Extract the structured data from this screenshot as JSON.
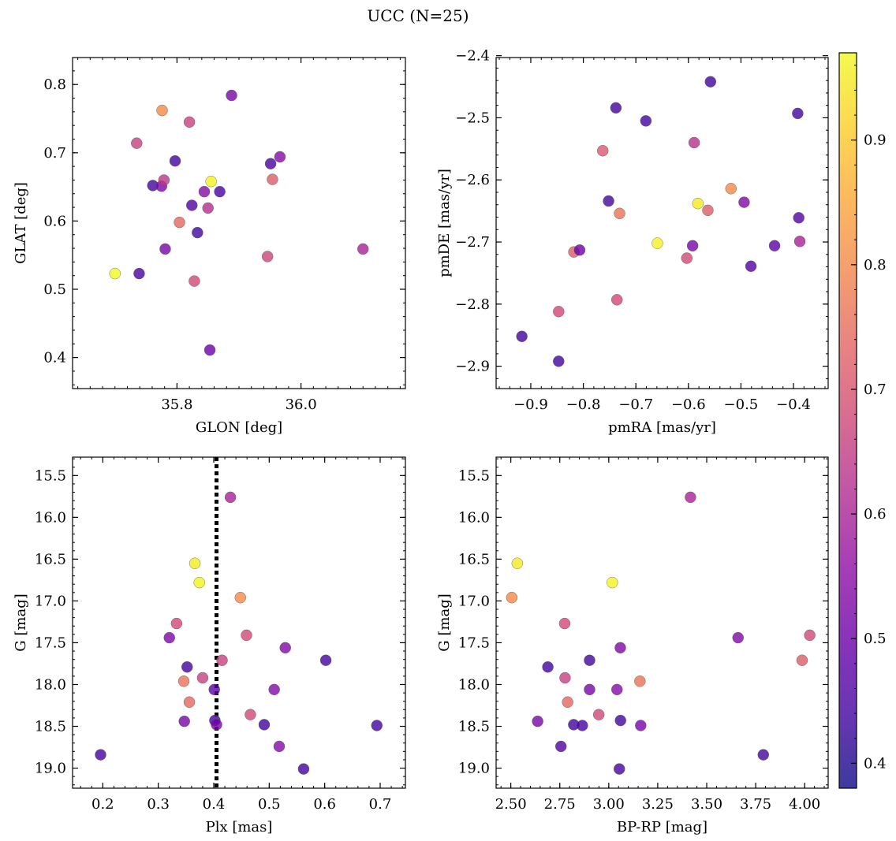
{
  "figure": {
    "title": "UCC (N=25)"
  },
  "colormap": [
    "#0d0887",
    "#41049d",
    "#6a00a8",
    "#8f0da4",
    "#b12a90",
    "#cc4778",
    "#e16462",
    "#f2844b",
    "#fca636",
    "#fcce25",
    "#f0f921"
  ],
  "colorbar": {
    "vmin": 0.38,
    "vmax": 0.97,
    "ticks": [
      "0.4",
      "0.5",
      "0.6",
      "0.7",
      "0.8",
      "0.9"
    ],
    "alpha": 0.8
  },
  "chart_data": [
    {
      "type": "scatter",
      "xlabel": "GLON [deg]",
      "ylabel": "GLAT [deg]",
      "xlim": [
        35.6316,
        36.1684
      ],
      "ylim": [
        0.3545,
        0.8395
      ],
      "xticks": [
        "35.8",
        "36.0"
      ],
      "yticks": [
        "0.4",
        "0.5",
        "0.6",
        "0.7",
        "0.8"
      ],
      "x_minor_step": 0.02,
      "y_minor_step": 0.02,
      "points": [
        {
          "x": 35.7,
          "y": 0.523,
          "c": 0.97
        },
        {
          "x": 35.739,
          "y": 0.523,
          "c": 0.45
        },
        {
          "x": 35.761,
          "y": 0.652,
          "c": 0.44
        },
        {
          "x": 35.735,
          "y": 0.714,
          "c": 0.66
        },
        {
          "x": 35.775,
          "y": 0.651,
          "c": 0.52
        },
        {
          "x": 35.776,
          "y": 0.762,
          "c": 0.8
        },
        {
          "x": 35.779,
          "y": 0.66,
          "c": 0.64
        },
        {
          "x": 35.781,
          "y": 0.559,
          "c": 0.52
        },
        {
          "x": 35.797,
          "y": 0.688,
          "c": 0.44
        },
        {
          "x": 35.804,
          "y": 0.598,
          "c": 0.74
        },
        {
          "x": 35.82,
          "y": 0.745,
          "c": 0.66
        },
        {
          "x": 35.824,
          "y": 0.623,
          "c": 0.46
        },
        {
          "x": 35.828,
          "y": 0.512,
          "c": 0.68
        },
        {
          "x": 35.833,
          "y": 0.583,
          "c": 0.44
        },
        {
          "x": 35.844,
          "y": 0.643,
          "c": 0.54
        },
        {
          "x": 35.85,
          "y": 0.619,
          "c": 0.62
        },
        {
          "x": 35.853,
          "y": 0.411,
          "c": 0.5
        },
        {
          "x": 35.855,
          "y": 0.658,
          "c": 0.96
        },
        {
          "x": 35.869,
          "y": 0.643,
          "c": 0.45
        },
        {
          "x": 35.888,
          "y": 0.784,
          "c": 0.52
        },
        {
          "x": 35.946,
          "y": 0.548,
          "c": 0.67
        },
        {
          "x": 35.951,
          "y": 0.684,
          "c": 0.45
        },
        {
          "x": 35.954,
          "y": 0.661,
          "c": 0.72
        },
        {
          "x": 35.966,
          "y": 0.694,
          "c": 0.54
        },
        {
          "x": 36.1,
          "y": 0.559,
          "c": 0.6
        }
      ]
    },
    {
      "type": "scatter",
      "xlabel": "pmRA [mas/yr]",
      "ylabel": "pmDE [mas/yr]",
      "xlim": [
        -0.966,
        -0.334
      ],
      "ylim": [
        -2.936,
        -2.403
      ],
      "xticks": [
        "−0.9",
        "−0.8",
        "−0.7",
        "−0.6",
        "−0.5",
        "−0.4"
      ],
      "yticks": [
        "−2.9",
        "−2.8",
        "−2.7",
        "−2.6",
        "−2.5",
        "−2.4"
      ],
      "x_minor_step": 0.02,
      "y_minor_step": 0.02,
      "points": [
        {
          "x": -0.917,
          "y": -2.852,
          "c": 0.44
        },
        {
          "x": -0.847,
          "y": -2.892,
          "c": 0.44
        },
        {
          "x": -0.847,
          "y": -2.812,
          "c": 0.68
        },
        {
          "x": -0.818,
          "y": -2.716,
          "c": 0.72
        },
        {
          "x": -0.807,
          "y": -2.713,
          "c": 0.5
        },
        {
          "x": -0.763,
          "y": -2.553,
          "c": 0.71
        },
        {
          "x": -0.752,
          "y": -2.634,
          "c": 0.44
        },
        {
          "x": -0.738,
          "y": -2.484,
          "c": 0.44
        },
        {
          "x": -0.736,
          "y": -2.793,
          "c": 0.68
        },
        {
          "x": -0.731,
          "y": -2.654,
          "c": 0.76
        },
        {
          "x": -0.681,
          "y": -2.505,
          "c": 0.44
        },
        {
          "x": -0.659,
          "y": -2.702,
          "c": 0.96
        },
        {
          "x": -0.603,
          "y": -2.726,
          "c": 0.68
        },
        {
          "x": -0.592,
          "y": -2.706,
          "c": 0.52
        },
        {
          "x": -0.589,
          "y": -2.54,
          "c": 0.63
        },
        {
          "x": -0.582,
          "y": -2.638,
          "c": 0.95
        },
        {
          "x": -0.563,
          "y": -2.649,
          "c": 0.72
        },
        {
          "x": -0.558,
          "y": -2.442,
          "c": 0.44
        },
        {
          "x": -0.519,
          "y": -2.614,
          "c": 0.8
        },
        {
          "x": -0.494,
          "y": -2.636,
          "c": 0.53
        },
        {
          "x": -0.481,
          "y": -2.739,
          "c": 0.46
        },
        {
          "x": -0.436,
          "y": -2.706,
          "c": 0.48
        },
        {
          "x": -0.392,
          "y": -2.493,
          "c": 0.44
        },
        {
          "x": -0.39,
          "y": -2.661,
          "c": 0.46
        },
        {
          "x": -0.388,
          "y": -2.699,
          "c": 0.6
        }
      ]
    },
    {
      "type": "scatter",
      "xlabel": "Plx [mas]",
      "ylabel": "G [mag]",
      "xlim": [
        0.1455,
        0.7455
      ],
      "ylim": [
        19.24,
        15.28
      ],
      "yinvert": true,
      "xticks": [
        "0.2",
        "0.3",
        "0.4",
        "0.5",
        "0.6",
        "0.7"
      ],
      "yticks": [
        "15.5",
        "16.0",
        "16.5",
        "17.0",
        "17.5",
        "18.0",
        "18.5",
        "19.0"
      ],
      "x_minor_step": 0.02,
      "y_minor_step": 0.1,
      "vline": 0.405,
      "points": [
        {
          "x": 0.196,
          "y": 18.84,
          "c": 0.44
        },
        {
          "x": 0.32,
          "y": 17.44,
          "c": 0.53
        },
        {
          "x": 0.333,
          "y": 17.27,
          "c": 0.68
        },
        {
          "x": 0.346,
          "y": 17.96,
          "c": 0.76
        },
        {
          "x": 0.347,
          "y": 18.44,
          "c": 0.52
        },
        {
          "x": 0.352,
          "y": 17.79,
          "c": 0.44
        },
        {
          "x": 0.356,
          "y": 18.21,
          "c": 0.74
        },
        {
          "x": 0.366,
          "y": 16.55,
          "c": 0.95
        },
        {
          "x": 0.374,
          "y": 16.78,
          "c": 0.96
        },
        {
          "x": 0.38,
          "y": 17.92,
          "c": 0.66
        },
        {
          "x": 0.401,
          "y": 18.06,
          "c": 0.48
        },
        {
          "x": 0.402,
          "y": 18.43,
          "c": 0.44
        },
        {
          "x": 0.405,
          "y": 18.48,
          "c": 0.52
        },
        {
          "x": 0.415,
          "y": 17.71,
          "c": 0.66
        },
        {
          "x": 0.43,
          "y": 15.76,
          "c": 0.6
        },
        {
          "x": 0.448,
          "y": 16.96,
          "c": 0.8
        },
        {
          "x": 0.459,
          "y": 17.41,
          "c": 0.68
        },
        {
          "x": 0.466,
          "y": 18.36,
          "c": 0.68
        },
        {
          "x": 0.491,
          "y": 18.48,
          "c": 0.44
        },
        {
          "x": 0.509,
          "y": 18.06,
          "c": 0.54
        },
        {
          "x": 0.518,
          "y": 18.74,
          "c": 0.54
        },
        {
          "x": 0.529,
          "y": 17.56,
          "c": 0.53
        },
        {
          "x": 0.562,
          "y": 19.01,
          "c": 0.44
        },
        {
          "x": 0.602,
          "y": 17.71,
          "c": 0.44
        },
        {
          "x": 0.694,
          "y": 18.49,
          "c": 0.44
        }
      ]
    },
    {
      "type": "scatter",
      "xlabel": "BP-RP [mag]",
      "ylabel": "G [mag]",
      "xlim": [
        2.425,
        4.12
      ],
      "ylim": [
        19.24,
        15.28
      ],
      "yinvert": true,
      "xticks": [
        "2.50",
        "2.75",
        "3.00",
        "3.25",
        "3.50",
        "3.75",
        "4.00"
      ],
      "yticks": [
        "15.5",
        "16.0",
        "16.5",
        "17.0",
        "17.5",
        "18.0",
        "18.5",
        "19.0"
      ],
      "x_minor_step": 0.05,
      "y_minor_step": 0.1,
      "points": [
        {
          "x": 2.505,
          "y": 16.96,
          "c": 0.8
        },
        {
          "x": 2.533,
          "y": 16.55,
          "c": 0.95
        },
        {
          "x": 2.637,
          "y": 18.44,
          "c": 0.52
        },
        {
          "x": 2.689,
          "y": 17.79,
          "c": 0.44
        },
        {
          "x": 2.756,
          "y": 18.74,
          "c": 0.46
        },
        {
          "x": 2.775,
          "y": 17.27,
          "c": 0.68
        },
        {
          "x": 2.777,
          "y": 17.92,
          "c": 0.66
        },
        {
          "x": 2.79,
          "y": 18.21,
          "c": 0.74
        },
        {
          "x": 2.821,
          "y": 18.48,
          "c": 0.44
        },
        {
          "x": 2.865,
          "y": 18.49,
          "c": 0.44
        },
        {
          "x": 2.902,
          "y": 17.71,
          "c": 0.44
        },
        {
          "x": 2.902,
          "y": 18.06,
          "c": 0.52
        },
        {
          "x": 2.949,
          "y": 18.36,
          "c": 0.68
        },
        {
          "x": 3.018,
          "y": 16.78,
          "c": 0.96
        },
        {
          "x": 3.042,
          "y": 18.06,
          "c": 0.54
        },
        {
          "x": 3.054,
          "y": 19.01,
          "c": 0.44
        },
        {
          "x": 3.059,
          "y": 17.56,
          "c": 0.53
        },
        {
          "x": 3.06,
          "y": 18.43,
          "c": 0.44
        },
        {
          "x": 3.159,
          "y": 17.96,
          "c": 0.76
        },
        {
          "x": 3.163,
          "y": 18.49,
          "c": 0.52
        },
        {
          "x": 3.417,
          "y": 15.76,
          "c": 0.6
        },
        {
          "x": 3.66,
          "y": 17.44,
          "c": 0.53
        },
        {
          "x": 3.789,
          "y": 18.84,
          "c": 0.44
        },
        {
          "x": 3.987,
          "y": 17.71,
          "c": 0.72
        },
        {
          "x": 4.026,
          "y": 17.41,
          "c": 0.68
        }
      ]
    }
  ]
}
